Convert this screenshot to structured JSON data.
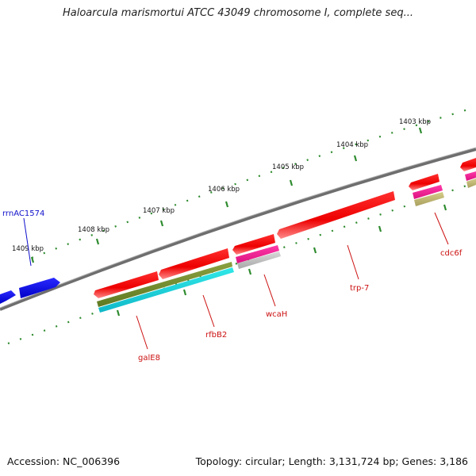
{
  "title": "Haloarcula marismortui ATCC 43049 chromosome I, complete seq...",
  "footer": {
    "accession": "Accession: NC_006396",
    "summary": "Topology: circular; Length: 3,131,724 bp; Genes: 3,186"
  },
  "colors": {
    "backbone": "#7a7a7a",
    "ticks": "#2e8b2e",
    "forward_strand": "#0000ee",
    "reverse_strand": "#ee0000",
    "label_forward": "#1010cc",
    "label_reverse": "#cc1010"
  },
  "ticks": [
    "1403 kbp",
    "1404 kbp",
    "1405 kbp",
    "1406 kbp",
    "1407 kbp",
    "1408 kbp",
    "1409 kbp"
  ],
  "features": [
    {
      "name": "rrnAC1574",
      "strand": "forward"
    },
    {
      "name": "galE8",
      "strand": "reverse"
    },
    {
      "name": "rfbB2",
      "strand": "reverse"
    },
    {
      "name": "wcaH",
      "strand": "reverse"
    },
    {
      "name": "trp-7",
      "strand": "reverse"
    },
    {
      "name": "cdc6f",
      "strand": "reverse"
    }
  ]
}
